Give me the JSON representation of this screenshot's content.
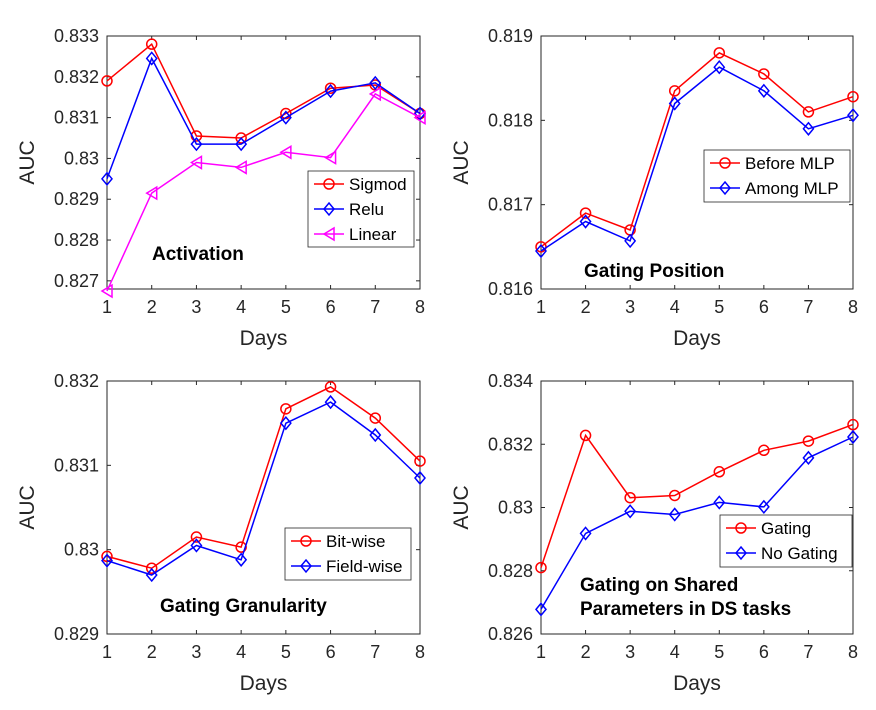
{
  "chart_data": [
    {
      "type": "line",
      "x": [
        1,
        2,
        3,
        4,
        5,
        6,
        7,
        8
      ],
      "xticks": [
        "1",
        "2",
        "3",
        "4",
        "5",
        "6",
        "7",
        "8"
      ],
      "xlim": [
        1,
        8
      ],
      "ylim": [
        0.8268,
        0.833
      ],
      "yticks": [
        "0.827",
        "0.828",
        "0.829",
        "0.83",
        "0.831",
        "0.832",
        "0.833"
      ],
      "xlabel": "Days",
      "ylabel": "AUC",
      "annotation": "Activation",
      "legend": "lower-right",
      "grid": false,
      "series": [
        {
          "name": "Sigmod",
          "color": "#ff0000",
          "marker": "circle",
          "values": [
            0.8319,
            0.8328,
            0.83055,
            0.8305,
            0.8311,
            0.83172,
            0.8318,
            0.8311
          ]
        },
        {
          "name": "Relu",
          "color": "#0000ff",
          "marker": "diamond",
          "values": [
            0.8295,
            0.83245,
            0.83035,
            0.83035,
            0.831,
            0.83165,
            0.83185,
            0.8311
          ]
        },
        {
          "name": "Linear",
          "color": "#ff00ff",
          "marker": "triangle-left",
          "values": [
            0.82675,
            0.82915,
            0.8299,
            0.82978,
            0.83015,
            0.83002,
            0.83158,
            0.831
          ]
        }
      ]
    },
    {
      "type": "line",
      "x": [
        1,
        2,
        3,
        4,
        5,
        6,
        7,
        8
      ],
      "xticks": [
        "1",
        "2",
        "3",
        "4",
        "5",
        "6",
        "7",
        "8"
      ],
      "xlim": [
        1,
        8
      ],
      "ylim": [
        0.816,
        0.819
      ],
      "yticks": [
        "0.816",
        "0.817",
        "0.818",
        "0.819"
      ],
      "xlabel": "Days",
      "ylabel": "AUC",
      "annotation": "Gating Position",
      "legend": "right",
      "grid": false,
      "series": [
        {
          "name": "Before MLP",
          "color": "#ff0000",
          "marker": "circle",
          "values": [
            0.8165,
            0.8169,
            0.8167,
            0.81835,
            0.8188,
            0.81855,
            0.8181,
            0.81828
          ]
        },
        {
          "name": "Among MLP",
          "color": "#0000ff",
          "marker": "diamond",
          "values": [
            0.81645,
            0.8168,
            0.81657,
            0.8182,
            0.81863,
            0.81835,
            0.8179,
            0.81806
          ]
        }
      ]
    },
    {
      "type": "line",
      "x": [
        1,
        2,
        3,
        4,
        5,
        6,
        7,
        8
      ],
      "xticks": [
        "1",
        "2",
        "3",
        "4",
        "5",
        "6",
        "7",
        "8"
      ],
      "xlim": [
        1,
        8
      ],
      "ylim": [
        0.829,
        0.832
      ],
      "yticks": [
        "0.829",
        "0.83",
        "0.831",
        "0.832"
      ],
      "xlabel": "Days",
      "ylabel": "AUC",
      "annotation": "Gating Granularity",
      "legend": "lower-right",
      "grid": false,
      "series": [
        {
          "name": "Bit-wise",
          "color": "#ff0000",
          "marker": "circle",
          "values": [
            0.82992,
            0.82978,
            0.83015,
            0.83003,
            0.83167,
            0.83193,
            0.83156,
            0.83105
          ]
        },
        {
          "name": "Field-wise",
          "color": "#0000ff",
          "marker": "diamond",
          "values": [
            0.82987,
            0.8297,
            0.83005,
            0.82988,
            0.8315,
            0.83175,
            0.83136,
            0.83085
          ]
        }
      ]
    },
    {
      "type": "line",
      "x": [
        1,
        2,
        3,
        4,
        5,
        6,
        7,
        8
      ],
      "xticks": [
        "1",
        "2",
        "3",
        "4",
        "5",
        "6",
        "7",
        "8"
      ],
      "xlim": [
        1,
        8
      ],
      "ylim": [
        0.826,
        0.834
      ],
      "yticks": [
        "0.826",
        "0.828",
        "0.83",
        "0.832",
        "0.834"
      ],
      "xlabel": "Days",
      "ylabel": "AUC",
      "annotation": "Gating on Shared\nParameters in DS tasks",
      "legend": "lower-right",
      "grid": false,
      "series": [
        {
          "name": "Gating",
          "color": "#ff0000",
          "marker": "circle",
          "values": [
            0.8281,
            0.83228,
            0.83031,
            0.83038,
            0.83113,
            0.83181,
            0.8321,
            0.83262
          ]
        },
        {
          "name": "No Gating",
          "color": "#0000ff",
          "marker": "diamond",
          "values": [
            0.82678,
            0.82918,
            0.82988,
            0.82978,
            0.83016,
            0.83002,
            0.83157,
            0.83223
          ]
        }
      ]
    }
  ]
}
